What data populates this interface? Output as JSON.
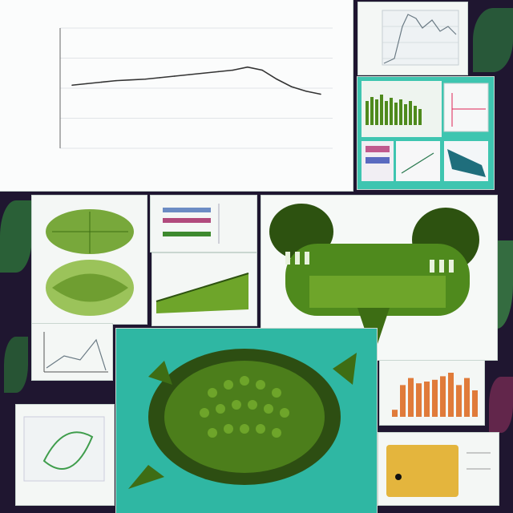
{
  "collage": {
    "main_chart": {
      "type": "line",
      "x": [
        1,
        2,
        3,
        4,
        5,
        6,
        7,
        8,
        9,
        10,
        11,
        12,
        13,
        14,
        15,
        16,
        17,
        18
      ],
      "y": [
        42,
        43,
        44,
        45,
        45.5,
        46,
        47,
        48,
        49,
        50,
        51,
        52,
        54,
        52,
        46,
        41,
        38,
        36
      ],
      "ylim": [
        0,
        80
      ],
      "grid": true
    },
    "bar_chart": {
      "type": "bar",
      "values": [
        8,
        36,
        44,
        38,
        40,
        42,
        46,
        50,
        36,
        44,
        30
      ]
    },
    "colors": {
      "frame_teal": "#3ec5b0",
      "plant_green": "#4f8a1d",
      "bar_orange": "#e07b3a",
      "card_yellow": "#e4b53d"
    }
  }
}
